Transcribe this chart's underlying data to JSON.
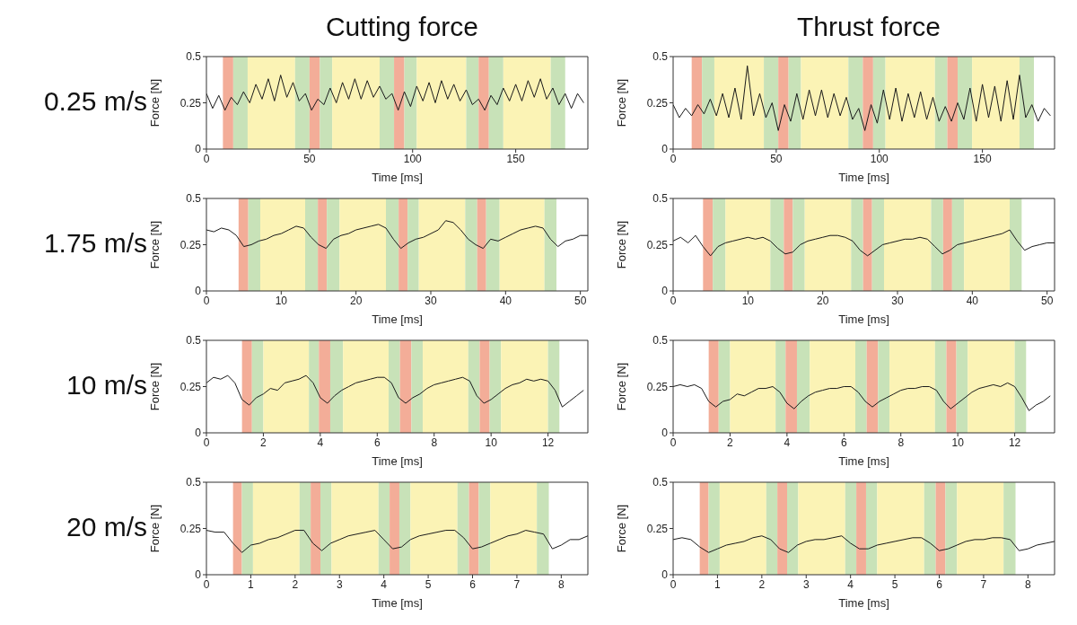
{
  "chart_data": [
    {
      "type": "line",
      "title": "Cutting force",
      "annotations": [
        "0.25 m/s"
      ],
      "xlabel": "Time [ms]",
      "ylabel": "Force [N]",
      "xlim": [
        0,
        185
      ],
      "xticks": [
        0,
        50,
        100,
        150
      ],
      "ylim": [
        0,
        0.5
      ],
      "yticks": [
        0,
        0.25,
        0.5
      ],
      "x": [
        0,
        3,
        6,
        9,
        12,
        15,
        18,
        21,
        24,
        27,
        30,
        33,
        36,
        39,
        42,
        45,
        48,
        51,
        54,
        57,
        60,
        63,
        66,
        69,
        72,
        75,
        78,
        81,
        84,
        87,
        90,
        93,
        96,
        99,
        102,
        105,
        108,
        111,
        114,
        117,
        120,
        123,
        126,
        129,
        132,
        135,
        138,
        141,
        144,
        147,
        150,
        153,
        156,
        159,
        162,
        165,
        168,
        171,
        174,
        177,
        180,
        183
      ],
      "series": [
        {
          "color": "#1a1a1a",
          "values": [
            0.3,
            0.22,
            0.29,
            0.21,
            0.28,
            0.24,
            0.31,
            0.25,
            0.35,
            0.27,
            0.38,
            0.26,
            0.4,
            0.28,
            0.36,
            0.26,
            0.3,
            0.21,
            0.27,
            0.24,
            0.33,
            0.25,
            0.36,
            0.27,
            0.38,
            0.27,
            0.37,
            0.28,
            0.34,
            0.27,
            0.3,
            0.21,
            0.31,
            0.23,
            0.34,
            0.26,
            0.36,
            0.25,
            0.37,
            0.27,
            0.35,
            0.26,
            0.32,
            0.24,
            0.27,
            0.21,
            0.29,
            0.24,
            0.33,
            0.26,
            0.35,
            0.26,
            0.37,
            0.28,
            0.38,
            0.27,
            0.33,
            0.24,
            0.3,
            0.22,
            0.3,
            0.25
          ]
        }
      ],
      "bands": [
        {
          "axis": "x",
          "from": 8,
          "to": 13,
          "color": "#f3ad98"
        },
        {
          "axis": "x",
          "from": 13,
          "to": 20,
          "color": "#c8e2b8"
        },
        {
          "axis": "x",
          "from": 20,
          "to": 43,
          "color": "#fbf3b5"
        },
        {
          "axis": "x",
          "from": 43,
          "to": 50,
          "color": "#c8e2b8"
        },
        {
          "axis": "x",
          "from": 50,
          "to": 55,
          "color": "#f3ad98"
        },
        {
          "axis": "x",
          "from": 55,
          "to": 61,
          "color": "#c8e2b8"
        },
        {
          "axis": "x",
          "from": 61,
          "to": 84,
          "color": "#fbf3b5"
        },
        {
          "axis": "x",
          "from": 84,
          "to": 91,
          "color": "#c8e2b8"
        },
        {
          "axis": "x",
          "from": 91,
          "to": 96,
          "color": "#f3ad98"
        },
        {
          "axis": "x",
          "from": 96,
          "to": 102,
          "color": "#c8e2b8"
        },
        {
          "axis": "x",
          "from": 102,
          "to": 126,
          "color": "#fbf3b5"
        },
        {
          "axis": "x",
          "from": 126,
          "to": 132,
          "color": "#c8e2b8"
        },
        {
          "axis": "x",
          "from": 132,
          "to": 137,
          "color": "#f3ad98"
        },
        {
          "axis": "x",
          "from": 137,
          "to": 144,
          "color": "#c8e2b8"
        },
        {
          "axis": "x",
          "from": 144,
          "to": 167,
          "color": "#fbf3b5"
        },
        {
          "axis": "x",
          "from": 167,
          "to": 174,
          "color": "#c8e2b8"
        }
      ]
    },
    {
      "type": "line",
      "title": "Thrust force",
      "xlabel": "Time [ms]",
      "ylabel": "Force [N]",
      "xlim": [
        0,
        185
      ],
      "xticks": [
        0,
        50,
        100,
        150
      ],
      "ylim": [
        0,
        0.5
      ],
      "yticks": [
        0,
        0.25,
        0.5
      ],
      "x": [
        0,
        3,
        6,
        9,
        12,
        15,
        18,
        21,
        24,
        27,
        30,
        33,
        36,
        39,
        42,
        45,
        48,
        51,
        54,
        57,
        60,
        63,
        66,
        69,
        72,
        75,
        78,
        81,
        84,
        87,
        90,
        93,
        96,
        99,
        102,
        105,
        108,
        111,
        114,
        117,
        120,
        123,
        126,
        129,
        132,
        135,
        138,
        141,
        144,
        147,
        150,
        153,
        156,
        159,
        162,
        165,
        168,
        171,
        174,
        177,
        180,
        183
      ],
      "series": [
        {
          "color": "#1a1a1a",
          "values": [
            0.24,
            0.17,
            0.22,
            0.18,
            0.24,
            0.19,
            0.27,
            0.18,
            0.3,
            0.17,
            0.33,
            0.16,
            0.45,
            0.18,
            0.3,
            0.17,
            0.25,
            0.1,
            0.24,
            0.15,
            0.3,
            0.16,
            0.32,
            0.18,
            0.32,
            0.17,
            0.3,
            0.18,
            0.28,
            0.16,
            0.22,
            0.1,
            0.24,
            0.14,
            0.32,
            0.16,
            0.33,
            0.15,
            0.3,
            0.17,
            0.31,
            0.16,
            0.28,
            0.15,
            0.23,
            0.15,
            0.25,
            0.16,
            0.33,
            0.15,
            0.35,
            0.17,
            0.34,
            0.15,
            0.37,
            0.16,
            0.4,
            0.17,
            0.24,
            0.15,
            0.22,
            0.18
          ]
        }
      ],
      "bands": [
        {
          "axis": "x",
          "from": 9,
          "to": 14,
          "color": "#f3ad98"
        },
        {
          "axis": "x",
          "from": 14,
          "to": 20,
          "color": "#c8e2b8"
        },
        {
          "axis": "x",
          "from": 20,
          "to": 44,
          "color": "#fbf3b5"
        },
        {
          "axis": "x",
          "from": 44,
          "to": 51,
          "color": "#c8e2b8"
        },
        {
          "axis": "x",
          "from": 51,
          "to": 56,
          "color": "#f3ad98"
        },
        {
          "axis": "x",
          "from": 56,
          "to": 62,
          "color": "#c8e2b8"
        },
        {
          "axis": "x",
          "from": 62,
          "to": 85,
          "color": "#fbf3b5"
        },
        {
          "axis": "x",
          "from": 85,
          "to": 92,
          "color": "#c8e2b8"
        },
        {
          "axis": "x",
          "from": 92,
          "to": 97,
          "color": "#f3ad98"
        },
        {
          "axis": "x",
          "from": 97,
          "to": 103,
          "color": "#c8e2b8"
        },
        {
          "axis": "x",
          "from": 103,
          "to": 127,
          "color": "#fbf3b5"
        },
        {
          "axis": "x",
          "from": 127,
          "to": 133,
          "color": "#c8e2b8"
        },
        {
          "axis": "x",
          "from": 133,
          "to": 138,
          "color": "#f3ad98"
        },
        {
          "axis": "x",
          "from": 138,
          "to": 145,
          "color": "#c8e2b8"
        },
        {
          "axis": "x",
          "from": 145,
          "to": 168,
          "color": "#fbf3b5"
        },
        {
          "axis": "x",
          "from": 168,
          "to": 175,
          "color": "#c8e2b8"
        }
      ]
    },
    {
      "type": "line",
      "annotations": [
        "1.75 m/s"
      ],
      "xlabel": "Time [ms]",
      "ylabel": "Force [N]",
      "xlim": [
        0,
        51
      ],
      "xticks": [
        0,
        10,
        20,
        30,
        40,
        50
      ],
      "ylim": [
        0,
        0.5
      ],
      "yticks": [
        0,
        0.25,
        0.5
      ],
      "x": [
        0,
        1,
        2,
        3,
        4,
        5,
        6,
        7,
        8,
        9,
        10,
        11,
        12,
        13,
        14,
        15,
        16,
        17,
        18,
        19,
        20,
        21,
        22,
        23,
        24,
        25,
        26,
        27,
        28,
        29,
        30,
        31,
        32,
        33,
        34,
        35,
        36,
        37,
        38,
        39,
        40,
        41,
        42,
        43,
        44,
        45,
        46,
        47,
        48,
        49,
        50,
        51
      ],
      "series": [
        {
          "color": "#1a1a1a",
          "values": [
            0.33,
            0.32,
            0.34,
            0.33,
            0.3,
            0.24,
            0.25,
            0.27,
            0.28,
            0.3,
            0.31,
            0.33,
            0.35,
            0.34,
            0.29,
            0.25,
            0.23,
            0.28,
            0.3,
            0.31,
            0.33,
            0.34,
            0.35,
            0.36,
            0.34,
            0.28,
            0.23,
            0.26,
            0.28,
            0.29,
            0.31,
            0.33,
            0.38,
            0.37,
            0.33,
            0.28,
            0.25,
            0.23,
            0.28,
            0.27,
            0.29,
            0.31,
            0.33,
            0.34,
            0.35,
            0.34,
            0.28,
            0.24,
            0.27,
            0.28,
            0.3,
            0.3
          ]
        }
      ],
      "bands": [
        {
          "axis": "x",
          "from": 4.3,
          "to": 5.6,
          "color": "#f3ad98"
        },
        {
          "axis": "x",
          "from": 5.6,
          "to": 7.2,
          "color": "#c8e2b8"
        },
        {
          "axis": "x",
          "from": 7.2,
          "to": 13.2,
          "color": "#fbf3b5"
        },
        {
          "axis": "x",
          "from": 13.2,
          "to": 14.9,
          "color": "#c8e2b8"
        },
        {
          "axis": "x",
          "from": 14.9,
          "to": 16.1,
          "color": "#f3ad98"
        },
        {
          "axis": "x",
          "from": 16.1,
          "to": 17.8,
          "color": "#c8e2b8"
        },
        {
          "axis": "x",
          "from": 17.8,
          "to": 24,
          "color": "#fbf3b5"
        },
        {
          "axis": "x",
          "from": 24,
          "to": 25.7,
          "color": "#c8e2b8"
        },
        {
          "axis": "x",
          "from": 25.7,
          "to": 26.9,
          "color": "#f3ad98"
        },
        {
          "axis": "x",
          "from": 26.9,
          "to": 28.4,
          "color": "#c8e2b8"
        },
        {
          "axis": "x",
          "from": 28.4,
          "to": 34.6,
          "color": "#fbf3b5"
        },
        {
          "axis": "x",
          "from": 34.6,
          "to": 36.2,
          "color": "#c8e2b8"
        },
        {
          "axis": "x",
          "from": 36.2,
          "to": 37.4,
          "color": "#f3ad98"
        },
        {
          "axis": "x",
          "from": 37.4,
          "to": 39.2,
          "color": "#c8e2b8"
        },
        {
          "axis": "x",
          "from": 39.2,
          "to": 45.2,
          "color": "#fbf3b5"
        },
        {
          "axis": "x",
          "from": 45.2,
          "to": 46.8,
          "color": "#c8e2b8"
        }
      ]
    },
    {
      "type": "line",
      "xlabel": "Time [ms]",
      "ylabel": "Force [N]",
      "xlim": [
        0,
        51
      ],
      "xticks": [
        0,
        10,
        20,
        30,
        40,
        50
      ],
      "ylim": [
        0,
        0.5
      ],
      "yticks": [
        0,
        0.25,
        0.5
      ],
      "x": [
        0,
        1,
        2,
        3,
        4,
        5,
        6,
        7,
        8,
        9,
        10,
        11,
        12,
        13,
        14,
        15,
        16,
        17,
        18,
        19,
        20,
        21,
        22,
        23,
        24,
        25,
        26,
        27,
        28,
        29,
        30,
        31,
        32,
        33,
        34,
        35,
        36,
        37,
        38,
        39,
        40,
        41,
        42,
        43,
        44,
        45,
        46,
        47,
        48,
        49,
        50,
        51
      ],
      "series": [
        {
          "color": "#1a1a1a",
          "values": [
            0.27,
            0.29,
            0.26,
            0.3,
            0.24,
            0.19,
            0.24,
            0.26,
            0.27,
            0.28,
            0.29,
            0.28,
            0.29,
            0.27,
            0.23,
            0.2,
            0.21,
            0.25,
            0.27,
            0.28,
            0.29,
            0.3,
            0.3,
            0.29,
            0.27,
            0.22,
            0.19,
            0.22,
            0.25,
            0.26,
            0.27,
            0.28,
            0.28,
            0.29,
            0.28,
            0.24,
            0.2,
            0.22,
            0.25,
            0.26,
            0.27,
            0.28,
            0.29,
            0.3,
            0.31,
            0.33,
            0.27,
            0.22,
            0.24,
            0.25,
            0.26,
            0.26
          ]
        }
      ],
      "bands": [
        {
          "axis": "x",
          "from": 4,
          "to": 5.3,
          "color": "#f3ad98"
        },
        {
          "axis": "x",
          "from": 5.3,
          "to": 7,
          "color": "#c8e2b8"
        },
        {
          "axis": "x",
          "from": 7,
          "to": 13,
          "color": "#fbf3b5"
        },
        {
          "axis": "x",
          "from": 13,
          "to": 14.8,
          "color": "#c8e2b8"
        },
        {
          "axis": "x",
          "from": 14.8,
          "to": 16,
          "color": "#f3ad98"
        },
        {
          "axis": "x",
          "from": 16,
          "to": 17.6,
          "color": "#c8e2b8"
        },
        {
          "axis": "x",
          "from": 17.6,
          "to": 23.8,
          "color": "#fbf3b5"
        },
        {
          "axis": "x",
          "from": 23.8,
          "to": 25.4,
          "color": "#c8e2b8"
        },
        {
          "axis": "x",
          "from": 25.4,
          "to": 26.6,
          "color": "#f3ad98"
        },
        {
          "axis": "x",
          "from": 26.6,
          "to": 28.2,
          "color": "#c8e2b8"
        },
        {
          "axis": "x",
          "from": 28.2,
          "to": 34.5,
          "color": "#fbf3b5"
        },
        {
          "axis": "x",
          "from": 34.5,
          "to": 36.1,
          "color": "#c8e2b8"
        },
        {
          "axis": "x",
          "from": 36.1,
          "to": 37.3,
          "color": "#f3ad98"
        },
        {
          "axis": "x",
          "from": 37.3,
          "to": 38.9,
          "color": "#c8e2b8"
        },
        {
          "axis": "x",
          "from": 38.9,
          "to": 45,
          "color": "#fbf3b5"
        },
        {
          "axis": "x",
          "from": 45,
          "to": 46.6,
          "color": "#c8e2b8"
        }
      ]
    },
    {
      "type": "line",
      "annotations": [
        "10 m/s"
      ],
      "xlabel": "Time [ms]",
      "ylabel": "Force [N]",
      "xlim": [
        0,
        13.4
      ],
      "xticks": [
        0,
        2,
        4,
        6,
        8,
        10,
        12
      ],
      "ylim": [
        0,
        0.5
      ],
      "yticks": [
        0,
        0.25,
        0.5
      ],
      "x": [
        0,
        0.25,
        0.5,
        0.75,
        1,
        1.25,
        1.5,
        1.75,
        2,
        2.25,
        2.5,
        2.75,
        3,
        3.25,
        3.5,
        3.75,
        4,
        4.25,
        4.5,
        4.75,
        5,
        5.25,
        5.5,
        5.75,
        6,
        6.25,
        6.5,
        6.75,
        7,
        7.25,
        7.5,
        7.75,
        8,
        8.25,
        8.5,
        8.75,
        9,
        9.25,
        9.5,
        9.75,
        10,
        10.25,
        10.5,
        10.75,
        11,
        11.25,
        11.5,
        11.75,
        12,
        12.25,
        12.5,
        12.75,
        13,
        13.25
      ],
      "series": [
        {
          "color": "#1a1a1a",
          "values": [
            0.27,
            0.3,
            0.29,
            0.31,
            0.27,
            0.18,
            0.15,
            0.19,
            0.21,
            0.24,
            0.23,
            0.27,
            0.28,
            0.29,
            0.31,
            0.27,
            0.19,
            0.16,
            0.2,
            0.23,
            0.25,
            0.27,
            0.28,
            0.29,
            0.3,
            0.3,
            0.27,
            0.19,
            0.16,
            0.19,
            0.21,
            0.24,
            0.26,
            0.27,
            0.28,
            0.29,
            0.3,
            0.28,
            0.2,
            0.16,
            0.18,
            0.21,
            0.24,
            0.26,
            0.27,
            0.29,
            0.28,
            0.29,
            0.28,
            0.23,
            0.14,
            0.17,
            0.2,
            0.23
          ]
        }
      ],
      "bands": [
        {
          "axis": "x",
          "from": 1.25,
          "to": 1.6,
          "color": "#f3ad98"
        },
        {
          "axis": "x",
          "from": 1.6,
          "to": 2,
          "color": "#c8e2b8"
        },
        {
          "axis": "x",
          "from": 2,
          "to": 3.6,
          "color": "#fbf3b5"
        },
        {
          "axis": "x",
          "from": 3.6,
          "to": 3.95,
          "color": "#c8e2b8"
        },
        {
          "axis": "x",
          "from": 3.95,
          "to": 4.35,
          "color": "#f3ad98"
        },
        {
          "axis": "x",
          "from": 4.35,
          "to": 4.8,
          "color": "#c8e2b8"
        },
        {
          "axis": "x",
          "from": 4.8,
          "to": 6.4,
          "color": "#fbf3b5"
        },
        {
          "axis": "x",
          "from": 6.4,
          "to": 6.8,
          "color": "#c8e2b8"
        },
        {
          "axis": "x",
          "from": 6.8,
          "to": 7.2,
          "color": "#f3ad98"
        },
        {
          "axis": "x",
          "from": 7.2,
          "to": 7.6,
          "color": "#c8e2b8"
        },
        {
          "axis": "x",
          "from": 7.6,
          "to": 9.2,
          "color": "#fbf3b5"
        },
        {
          "axis": "x",
          "from": 9.2,
          "to": 9.6,
          "color": "#c8e2b8"
        },
        {
          "axis": "x",
          "from": 9.6,
          "to": 9.95,
          "color": "#f3ad98"
        },
        {
          "axis": "x",
          "from": 9.95,
          "to": 10.35,
          "color": "#c8e2b8"
        },
        {
          "axis": "x",
          "from": 10.35,
          "to": 12,
          "color": "#fbf3b5"
        },
        {
          "axis": "x",
          "from": 12,
          "to": 12.4,
          "color": "#c8e2b8"
        }
      ]
    },
    {
      "type": "line",
      "xlabel": "Time [ms]",
      "ylabel": "Force [N]",
      "xlim": [
        0,
        13.4
      ],
      "xticks": [
        0,
        2,
        4,
        6,
        8,
        10,
        12
      ],
      "ylim": [
        0,
        0.5
      ],
      "yticks": [
        0,
        0.25,
        0.5
      ],
      "x": [
        0,
        0.25,
        0.5,
        0.75,
        1,
        1.25,
        1.5,
        1.75,
        2,
        2.25,
        2.5,
        2.75,
        3,
        3.25,
        3.5,
        3.75,
        4,
        4.25,
        4.5,
        4.75,
        5,
        5.25,
        5.5,
        5.75,
        6,
        6.25,
        6.5,
        6.75,
        7,
        7.25,
        7.5,
        7.75,
        8,
        8.25,
        8.5,
        8.75,
        9,
        9.25,
        9.5,
        9.75,
        10,
        10.25,
        10.5,
        10.75,
        11,
        11.25,
        11.5,
        11.75,
        12,
        12.25,
        12.5,
        12.75,
        13,
        13.25
      ],
      "series": [
        {
          "color": "#1a1a1a",
          "values": [
            0.25,
            0.26,
            0.25,
            0.26,
            0.24,
            0.17,
            0.14,
            0.17,
            0.18,
            0.21,
            0.2,
            0.22,
            0.24,
            0.24,
            0.25,
            0.22,
            0.16,
            0.13,
            0.17,
            0.2,
            0.22,
            0.23,
            0.24,
            0.24,
            0.25,
            0.25,
            0.22,
            0.17,
            0.14,
            0.17,
            0.19,
            0.21,
            0.23,
            0.24,
            0.24,
            0.25,
            0.25,
            0.23,
            0.17,
            0.13,
            0.16,
            0.19,
            0.22,
            0.24,
            0.25,
            0.26,
            0.25,
            0.27,
            0.25,
            0.19,
            0.12,
            0.15,
            0.17,
            0.2
          ]
        }
      ],
      "bands": [
        {
          "axis": "x",
          "from": 1.25,
          "to": 1.6,
          "color": "#f3ad98"
        },
        {
          "axis": "x",
          "from": 1.6,
          "to": 2,
          "color": "#c8e2b8"
        },
        {
          "axis": "x",
          "from": 2,
          "to": 3.6,
          "color": "#fbf3b5"
        },
        {
          "axis": "x",
          "from": 3.6,
          "to": 3.95,
          "color": "#c8e2b8"
        },
        {
          "axis": "x",
          "from": 3.95,
          "to": 4.35,
          "color": "#f3ad98"
        },
        {
          "axis": "x",
          "from": 4.35,
          "to": 4.8,
          "color": "#c8e2b8"
        },
        {
          "axis": "x",
          "from": 4.8,
          "to": 6.4,
          "color": "#fbf3b5"
        },
        {
          "axis": "x",
          "from": 6.4,
          "to": 6.8,
          "color": "#c8e2b8"
        },
        {
          "axis": "x",
          "from": 6.8,
          "to": 7.2,
          "color": "#f3ad98"
        },
        {
          "axis": "x",
          "from": 7.2,
          "to": 7.6,
          "color": "#c8e2b8"
        },
        {
          "axis": "x",
          "from": 7.6,
          "to": 9.2,
          "color": "#fbf3b5"
        },
        {
          "axis": "x",
          "from": 9.2,
          "to": 9.6,
          "color": "#c8e2b8"
        },
        {
          "axis": "x",
          "from": 9.6,
          "to": 9.95,
          "color": "#f3ad98"
        },
        {
          "axis": "x",
          "from": 9.95,
          "to": 10.35,
          "color": "#c8e2b8"
        },
        {
          "axis": "x",
          "from": 10.35,
          "to": 12,
          "color": "#fbf3b5"
        },
        {
          "axis": "x",
          "from": 12,
          "to": 12.4,
          "color": "#c8e2b8"
        }
      ]
    },
    {
      "type": "line",
      "annotations": [
        "20 m/s"
      ],
      "xlabel": "Time [ms]",
      "ylabel": "Force [N]",
      "xlim": [
        0,
        8.6
      ],
      "xticks": [
        0,
        1,
        2,
        3,
        4,
        5,
        6,
        7,
        8
      ],
      "ylim": [
        0,
        0.5
      ],
      "yticks": [
        0,
        0.25,
        0.5
      ],
      "x": [
        0,
        0.2,
        0.4,
        0.6,
        0.8,
        1,
        1.2,
        1.4,
        1.6,
        1.8,
        2,
        2.2,
        2.4,
        2.6,
        2.8,
        3,
        3.2,
        3.4,
        3.6,
        3.8,
        4,
        4.2,
        4.4,
        4.6,
        4.8,
        5,
        5.2,
        5.4,
        5.6,
        5.8,
        6,
        6.2,
        6.4,
        6.6,
        6.8,
        7,
        7.2,
        7.4,
        7.6,
        7.8,
        8,
        8.2,
        8.4,
        8.6
      ],
      "series": [
        {
          "color": "#1a1a1a",
          "values": [
            0.24,
            0.23,
            0.23,
            0.17,
            0.12,
            0.16,
            0.17,
            0.19,
            0.2,
            0.22,
            0.24,
            0.24,
            0.17,
            0.13,
            0.17,
            0.19,
            0.21,
            0.22,
            0.23,
            0.24,
            0.19,
            0.14,
            0.15,
            0.19,
            0.21,
            0.22,
            0.23,
            0.24,
            0.24,
            0.2,
            0.14,
            0.15,
            0.17,
            0.19,
            0.21,
            0.22,
            0.24,
            0.23,
            0.22,
            0.14,
            0.16,
            0.19,
            0.19,
            0.21
          ]
        }
      ],
      "bands": [
        {
          "axis": "x",
          "from": 0.6,
          "to": 0.8,
          "color": "#f3ad98"
        },
        {
          "axis": "x",
          "from": 0.8,
          "to": 1.05,
          "color": "#c8e2b8"
        },
        {
          "axis": "x",
          "from": 1.05,
          "to": 2.1,
          "color": "#fbf3b5"
        },
        {
          "axis": "x",
          "from": 2.1,
          "to": 2.35,
          "color": "#c8e2b8"
        },
        {
          "axis": "x",
          "from": 2.35,
          "to": 2.57,
          "color": "#f3ad98"
        },
        {
          "axis": "x",
          "from": 2.57,
          "to": 2.82,
          "color": "#c8e2b8"
        },
        {
          "axis": "x",
          "from": 2.82,
          "to": 3.88,
          "color": "#fbf3b5"
        },
        {
          "axis": "x",
          "from": 3.88,
          "to": 4.13,
          "color": "#c8e2b8"
        },
        {
          "axis": "x",
          "from": 4.13,
          "to": 4.35,
          "color": "#f3ad98"
        },
        {
          "axis": "x",
          "from": 4.35,
          "to": 4.6,
          "color": "#c8e2b8"
        },
        {
          "axis": "x",
          "from": 4.6,
          "to": 5.66,
          "color": "#fbf3b5"
        },
        {
          "axis": "x",
          "from": 5.66,
          "to": 5.92,
          "color": "#c8e2b8"
        },
        {
          "axis": "x",
          "from": 5.92,
          "to": 6.14,
          "color": "#f3ad98"
        },
        {
          "axis": "x",
          "from": 6.14,
          "to": 6.4,
          "color": "#c8e2b8"
        },
        {
          "axis": "x",
          "from": 6.4,
          "to": 7.45,
          "color": "#fbf3b5"
        },
        {
          "axis": "x",
          "from": 7.45,
          "to": 7.72,
          "color": "#c8e2b8"
        }
      ]
    },
    {
      "type": "line",
      "xlabel": "Time [ms]",
      "ylabel": "Force [N]",
      "xlim": [
        0,
        8.6
      ],
      "xticks": [
        0,
        1,
        2,
        3,
        4,
        5,
        6,
        7,
        8
      ],
      "ylim": [
        0,
        0.5
      ],
      "yticks": [
        0,
        0.25,
        0.5
      ],
      "x": [
        0,
        0.2,
        0.4,
        0.6,
        0.8,
        1,
        1.2,
        1.4,
        1.6,
        1.8,
        2,
        2.2,
        2.4,
        2.6,
        2.8,
        3,
        3.2,
        3.4,
        3.6,
        3.8,
        4,
        4.2,
        4.4,
        4.6,
        4.8,
        5,
        5.2,
        5.4,
        5.6,
        5.8,
        6,
        6.2,
        6.4,
        6.6,
        6.8,
        7,
        7.2,
        7.4,
        7.6,
        7.8,
        8,
        8.2,
        8.4,
        8.6
      ],
      "series": [
        {
          "color": "#1a1a1a",
          "values": [
            0.19,
            0.2,
            0.19,
            0.15,
            0.12,
            0.14,
            0.16,
            0.17,
            0.18,
            0.2,
            0.21,
            0.19,
            0.14,
            0.12,
            0.16,
            0.18,
            0.19,
            0.19,
            0.2,
            0.21,
            0.17,
            0.14,
            0.14,
            0.16,
            0.17,
            0.18,
            0.19,
            0.2,
            0.2,
            0.17,
            0.13,
            0.14,
            0.16,
            0.18,
            0.19,
            0.19,
            0.2,
            0.2,
            0.19,
            0.13,
            0.14,
            0.16,
            0.17,
            0.18
          ]
        }
      ],
      "bands": [
        {
          "axis": "x",
          "from": 0.6,
          "to": 0.8,
          "color": "#f3ad98"
        },
        {
          "axis": "x",
          "from": 0.8,
          "to": 1.05,
          "color": "#c8e2b8"
        },
        {
          "axis": "x",
          "from": 1.05,
          "to": 2.1,
          "color": "#fbf3b5"
        },
        {
          "axis": "x",
          "from": 2.1,
          "to": 2.35,
          "color": "#c8e2b8"
        },
        {
          "axis": "x",
          "from": 2.35,
          "to": 2.57,
          "color": "#f3ad98"
        },
        {
          "axis": "x",
          "from": 2.57,
          "to": 2.82,
          "color": "#c8e2b8"
        },
        {
          "axis": "x",
          "from": 2.82,
          "to": 3.88,
          "color": "#fbf3b5"
        },
        {
          "axis": "x",
          "from": 3.88,
          "to": 4.13,
          "color": "#c8e2b8"
        },
        {
          "axis": "x",
          "from": 4.13,
          "to": 4.35,
          "color": "#f3ad98"
        },
        {
          "axis": "x",
          "from": 4.35,
          "to": 4.6,
          "color": "#c8e2b8"
        },
        {
          "axis": "x",
          "from": 4.6,
          "to": 5.66,
          "color": "#fbf3b5"
        },
        {
          "axis": "x",
          "from": 5.66,
          "to": 5.92,
          "color": "#c8e2b8"
        },
        {
          "axis": "x",
          "from": 5.92,
          "to": 6.14,
          "color": "#f3ad98"
        },
        {
          "axis": "x",
          "from": 6.14,
          "to": 6.4,
          "color": "#c8e2b8"
        },
        {
          "axis": "x",
          "from": 6.4,
          "to": 7.45,
          "color": "#fbf3b5"
        },
        {
          "axis": "x",
          "from": 7.45,
          "to": 7.72,
          "color": "#c8e2b8"
        }
      ]
    }
  ]
}
